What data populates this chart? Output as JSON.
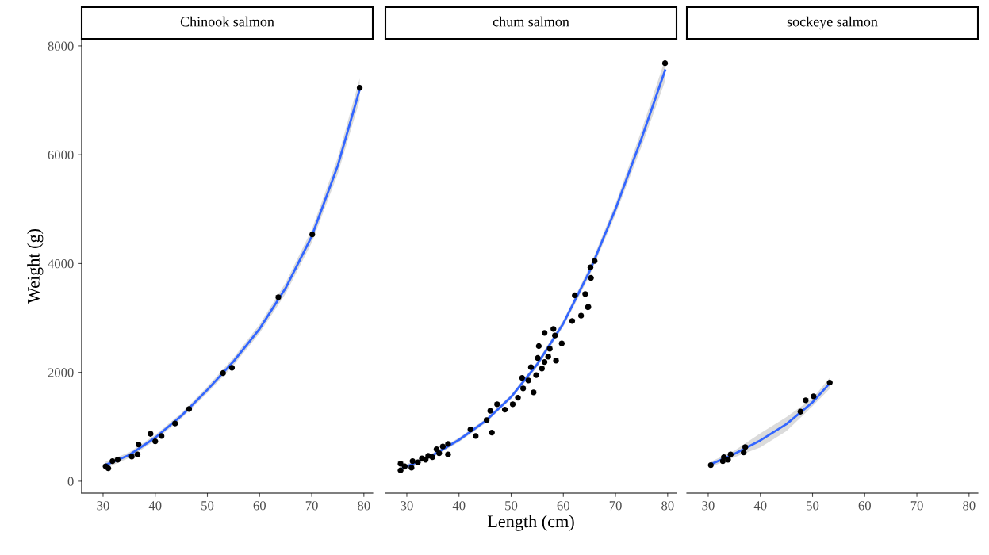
{
  "chart_data": [
    {
      "type": "scatter",
      "title": "Chinook salmon",
      "ylabel": "Weight (g)",
      "xlim": [
        25.9,
        81.7
      ],
      "ylim": [
        -220,
        8130
      ],
      "xticks": [
        30,
        40,
        50,
        60,
        70,
        80
      ],
      "yticks": [
        0,
        2000,
        4000,
        6000,
        8000
      ],
      "grid": false,
      "legend": false,
      "series": [
        {
          "marker": "circle",
          "color": "#000000",
          "x": [
            30.5,
            31.0,
            31.8,
            32.8,
            35.5,
            36.6,
            36.8,
            39.1,
            40.0,
            41.2,
            43.8,
            46.5,
            53.0,
            54.7,
            63.6,
            70.1,
            79.2
          ],
          "values": [
            273,
            238,
            369,
            394,
            452,
            491,
            675,
            870,
            733,
            831,
            1060,
            1327,
            1987,
            2085,
            3382,
            4534,
            7230
          ]
        },
        {
          "type": "line",
          "color": "#3366ff",
          "x": [
            30.5,
            35,
            40,
            45,
            50,
            55,
            60,
            65,
            70,
            75,
            79.2
          ],
          "values": [
            300,
            480,
            800,
            1200,
            1680,
            2200,
            2800,
            3550,
            4500,
            5800,
            7200
          ],
          "lower": [
            240,
            430,
            750,
            1150,
            1620,
            2130,
            2720,
            3450,
            4380,
            5650,
            7000
          ],
          "upper": [
            360,
            530,
            850,
            1250,
            1740,
            2270,
            2880,
            3650,
            4620,
            5950,
            7400
          ]
        }
      ]
    },
    {
      "type": "scatter",
      "title": "chum salmon",
      "xlabel": "Length (cm)",
      "xlim": [
        25.9,
        81.7
      ],
      "ylim": [
        -220,
        8130
      ],
      "xticks": [
        30,
        40,
        50,
        60,
        70,
        80
      ],
      "yticks": [
        0,
        2000,
        4000,
        6000,
        8000
      ],
      "tick_labels": "x",
      "grid": false,
      "legend": false,
      "series": [
        {
          "marker": "circle",
          "color": "#000000",
          "x": [
            28.8,
            28.8,
            29.6,
            30.9,
            31.1,
            32.1,
            32.9,
            33.6,
            34.1,
            34.9,
            35.7,
            36.2,
            36.9,
            37.9,
            37.9,
            42.2,
            43.2,
            45.3,
            46.0,
            46.3,
            47.3,
            48.8,
            50.3,
            51.3,
            52.1,
            52.3,
            53.3,
            53.8,
            54.3,
            54.8,
            55.1,
            55.3,
            55.9,
            56.4,
            56.4,
            57.1,
            57.4,
            58.1,
            58.4,
            58.6,
            59.7,
            61.7,
            63.4,
            64.8,
            62.2,
            64.2,
            64.7,
            65.2,
            65.3,
            66.0,
            79.5
          ],
          "values": [
            199,
            320,
            272,
            248,
            369,
            345,
            418,
            394,
            466,
            442,
            588,
            515,
            637,
            685,
            491,
            952,
            831,
            1122,
            1293,
            894,
            1414,
            1316,
            1414,
            1535,
            1899,
            1706,
            1851,
            2095,
            1633,
            1949,
            2264,
            2483,
            2070,
            2191,
            2726,
            2289,
            2434,
            2799,
            2678,
            2216,
            2532,
            2945,
            3042,
            3203,
            3416,
            3440,
            3197,
            3931,
            3736,
            4048,
            7682
          ]
        },
        {
          "type": "line",
          "color": "#3366ff",
          "x": [
            28.8,
            35,
            40,
            45,
            50,
            55,
            60,
            65,
            70,
            75,
            79.5
          ],
          "values": [
            220,
            480,
            760,
            1100,
            1550,
            2150,
            2900,
            3850,
            5000,
            6300,
            7550
          ],
          "lower": [
            170,
            440,
            720,
            1060,
            1510,
            2100,
            2840,
            3770,
            4900,
            6150,
            7350
          ],
          "upper": [
            270,
            520,
            800,
            1140,
            1590,
            2200,
            2960,
            3930,
            5100,
            6450,
            7750
          ]
        }
      ]
    },
    {
      "type": "scatter",
      "title": "sockeye salmon",
      "xlim": [
        25.9,
        81.7
      ],
      "ylim": [
        -220,
        8130
      ],
      "xticks": [
        30,
        40,
        50,
        60,
        70,
        80
      ],
      "yticks": [
        0,
        2000,
        4000,
        6000,
        8000
      ],
      "tick_labels": "x",
      "grid": false,
      "legend": false,
      "series": [
        {
          "marker": "circle",
          "color": "#000000",
          "x": [
            30.5,
            32.8,
            33.8,
            34.3,
            33.0,
            36.8,
            37.1,
            47.7,
            48.7,
            50.2,
            53.3
          ],
          "values": [
            296,
            369,
            394,
            491,
            442,
            530,
            627,
            1278,
            1487,
            1560,
            1812
          ]
        },
        {
          "type": "line",
          "color": "#3366ff",
          "x": [
            30.5,
            35,
            40,
            45,
            50,
            53.3
          ],
          "values": [
            310,
            500,
            750,
            1050,
            1450,
            1800
          ],
          "lower": [
            260,
            440,
            620,
            920,
            1380,
            1700
          ],
          "upper": [
            360,
            560,
            880,
            1180,
            1520,
            1900
          ]
        }
      ]
    }
  ]
}
